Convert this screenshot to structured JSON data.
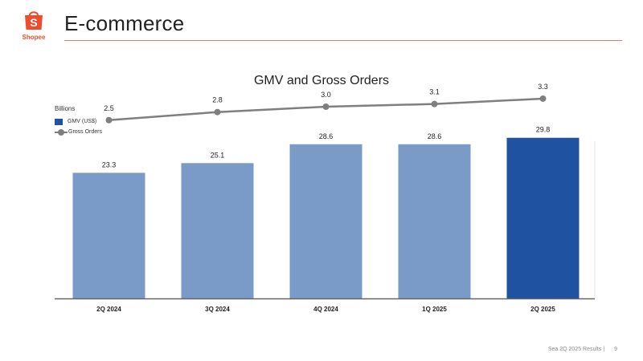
{
  "brand": {
    "logo_text": "Shopee",
    "logo_color": "#ee4d2d"
  },
  "header": {
    "title": "E-commerce"
  },
  "chart_data": {
    "type": "bar",
    "title": "GMV and Gross Orders",
    "units_label": "Billions",
    "categories": [
      "2Q 2024",
      "3Q 2024",
      "4Q 2024",
      "1Q 2025",
      "2Q 2025"
    ],
    "series": [
      {
        "name": "GMV (US$)",
        "kind": "bar",
        "values": [
          23.3,
          25.1,
          28.6,
          28.6,
          29.8
        ],
        "labels": [
          "23.3",
          "25.1",
          "28.6",
          "28.6",
          "29.8"
        ],
        "color": "#7a9ac8",
        "highlight_color": "#1f52a0",
        "highlight_index": 4
      },
      {
        "name": "Gross Orders",
        "kind": "line",
        "values": [
          2.5,
          2.8,
          3.0,
          3.1,
          3.3
        ],
        "labels": [
          "2.5",
          "2.8",
          "3.0",
          "3.1",
          "3.3"
        ],
        "color": "#7f7f7f"
      }
    ],
    "legend_position": "top-left",
    "grid": false
  },
  "footer": {
    "source": "Sea 2Q 2025 Results |",
    "page_number": "9"
  }
}
